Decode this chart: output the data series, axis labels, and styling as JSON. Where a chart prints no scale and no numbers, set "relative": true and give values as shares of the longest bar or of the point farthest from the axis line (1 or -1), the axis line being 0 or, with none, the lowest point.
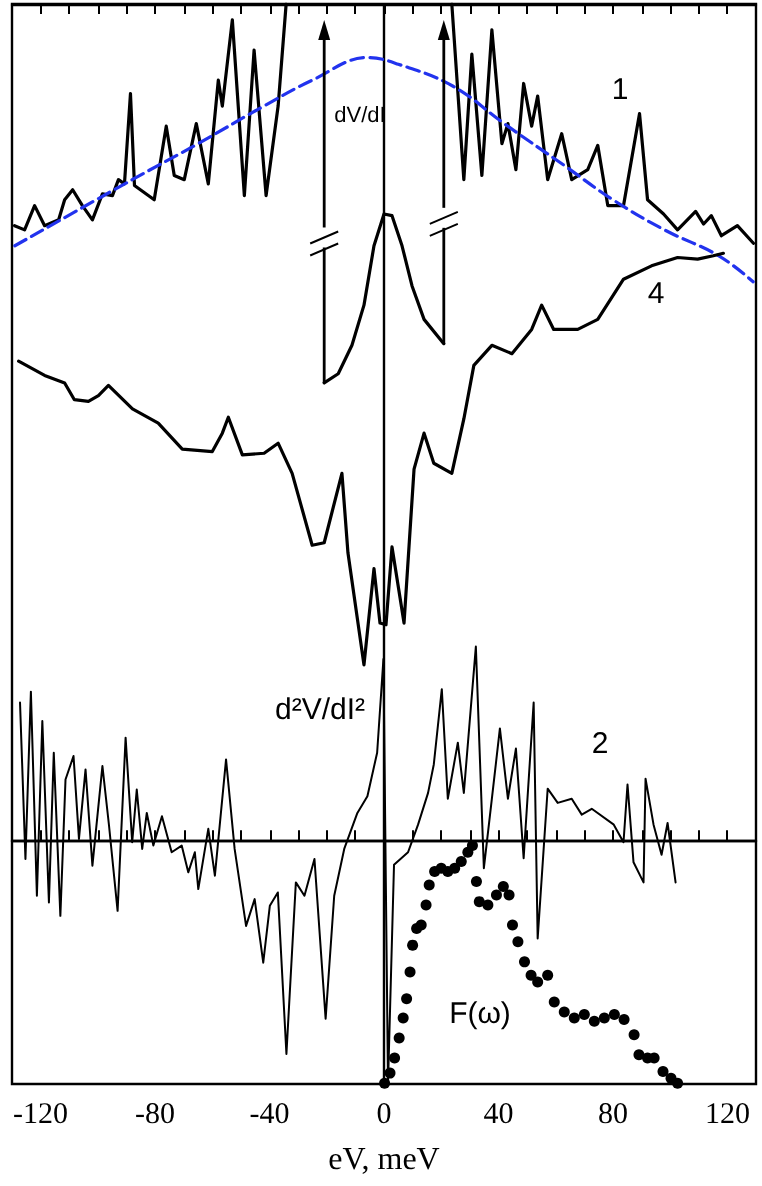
{
  "chart_data": {
    "type": "line",
    "relative": true,
    "xlabel": "eV, meV",
    "xlim": [
      -130,
      130
    ],
    "xticks": [
      {
        "value": -120,
        "label": "-120"
      },
      {
        "value": -110,
        "label": null
      },
      {
        "value": -100,
        "label": null
      },
      {
        "value": -90,
        "label": null
      },
      {
        "value": -80,
        "label": "-80"
      },
      {
        "value": -70,
        "label": null
      },
      {
        "value": -60,
        "label": null
      },
      {
        "value": -50,
        "label": null
      },
      {
        "value": -40,
        "label": "-40"
      },
      {
        "value": -30,
        "label": null
      },
      {
        "value": -20,
        "label": null
      },
      {
        "value": -10,
        "label": null
      },
      {
        "value": 0,
        "label": "0"
      },
      {
        "value": 10,
        "label": null
      },
      {
        "value": 20,
        "label": null
      },
      {
        "value": 30,
        "label": null
      },
      {
        "value": 40,
        "label": "40"
      },
      {
        "value": 50,
        "label": null
      },
      {
        "value": 60,
        "label": null
      },
      {
        "value": 70,
        "label": null
      },
      {
        "value": 80,
        "label": "80"
      },
      {
        "value": 90,
        "label": null
      },
      {
        "value": 100,
        "label": null
      },
      {
        "value": 110,
        "label": null
      },
      {
        "value": 120,
        "label": "120"
      }
    ],
    "grid": false,
    "marker": "none",
    "line_style": "solid",
    "series": [
      {
        "name": "1",
        "color": "#000000",
        "x": [
          -129.1,
          -125.6,
          -122.1,
          -118.6,
          -113.7,
          -111.6,
          -108.8,
          -105.4,
          -101.9,
          -98.4,
          -94.9,
          -92.8,
          -90.7,
          -88.6,
          -87.2,
          -80.3,
          -76.1,
          -73.3,
          -69.8,
          -65.6,
          -61.4,
          -57.9,
          -56.5,
          -53.0,
          -48.8,
          -45.4,
          -41.2,
          -37.0,
          -34.2,
          -27.0,
          -20.9,
          -16.0,
          -11.2,
          -7.0,
          -3.5,
          0,
          2.8,
          6.3,
          9.8,
          14.0,
          20.9,
          22.0,
          23.7,
          27.9,
          30.7,
          34.2,
          37.7,
          41.2,
          43.3,
          46.1,
          48.8,
          51.6,
          53.7,
          57.2,
          62.1,
          65.6,
          71.2,
          74.7,
          78.2,
          83.7,
          89.3,
          92.1,
          97.7,
          102.6,
          108.9,
          111.7,
          114.4,
          117.9,
          123.5,
          129.1
        ],
        "values": [
          0.735,
          0.73,
          0.759,
          0.735,
          0.742,
          0.766,
          0.778,
          0.759,
          0.742,
          0.773,
          0.771,
          0.79,
          0.785,
          0.893,
          0.783,
          0.766,
          0.854,
          0.795,
          0.79,
          0.857,
          0.785,
          0.909,
          0.878,
          0.981,
          0.771,
          0.945,
          0.771,
          0.878,
          1.0,
          null,
          0.547,
          0.558,
          0.592,
          0.64,
          0.711,
          0.749,
          0.747,
          0.711,
          0.663,
          0.623,
          0.594,
          null,
          1.0,
          0.79,
          0.94,
          0.795,
          0.969,
          0.833,
          0.857,
          0.802,
          0.905,
          0.854,
          0.89,
          0.79,
          0.845,
          0.79,
          0.802,
          0.831,
          0.759,
          0.759,
          0.869,
          0.766,
          0.749,
          0.73,
          0.752,
          0.737,
          0.747,
          0.723,
          0.735,
          0.714
        ]
      },
      {
        "color": "#2233ee",
        "line_style": "dashed",
        "x": [
          -129,
          -88,
          -65,
          -42,
          -25,
          -5.6,
          5,
          24,
          42,
          63,
          80,
          98,
          117,
          129
        ],
        "values": [
          0.711,
          0.79,
          0.833,
          0.878,
          0.909,
          0.936,
          0.928,
          0.902,
          0.857,
          0.807,
          0.766,
          0.73,
          0.699,
          0.668
        ]
      },
      {
        "name": "4",
        "color": "#000000",
        "x": [
          -127.7,
          -118.6,
          -111.6,
          -108.2,
          -103.3,
          -99.8,
          -96.3,
          -87.9,
          -78.9,
          -70.5,
          -60.0,
          -56.5,
          -54.4,
          -49.5,
          -41.9,
          -37.0,
          -32.1,
          -25.1,
          -20.9,
          -14.7,
          -12.6,
          -7.0,
          -3.5,
          -1.4,
          0.7,
          2.8,
          7.0,
          10.5,
          14.0,
          17.4,
          23.7,
          27.9,
          31.4,
          37.7,
          44.7,
          51.6,
          55.1,
          59.3,
          67.7,
          74.7,
          83.7,
          93.5,
          102.6,
          109.6,
          115.1,
          118.6
        ],
        "values": [
          0.573,
          0.556,
          0.547,
          0.527,
          0.525,
          0.532,
          0.544,
          0.516,
          0.499,
          0.468,
          0.465,
          0.487,
          0.506,
          0.461,
          0.463,
          0.475,
          0.439,
          0.353,
          0.356,
          0.439,
          0.344,
          0.21,
          0.325,
          0.26,
          0.258,
          0.351,
          0.26,
          0.444,
          0.487,
          0.451,
          0.439,
          0.504,
          0.568,
          0.592,
          0.582,
          0.611,
          0.64,
          0.611,
          0.611,
          0.623,
          0.671,
          0.687,
          0.697,
          0.695,
          0.699,
          0.702
        ]
      },
      {
        "name": "2",
        "color": "#000000",
        "x": [
          -127.2,
          -125.3,
          -123.4,
          -121.3,
          -119.4,
          -117.1,
          -115.4,
          -113.1,
          -111.3,
          -108.5,
          -106.6,
          -104.3,
          -101.9,
          -98.4,
          -96.1,
          -93.1,
          -90.3,
          -88.0,
          -86.4,
          -84.5,
          -82.9,
          -80.6,
          -77.6,
          -74.2,
          -70.7,
          -68.4,
          -66.1,
          -64.9,
          -61.4,
          -59.1,
          -55.2,
          -52.2,
          -48.2,
          -45.2,
          -42.2,
          -39.9,
          -37.1,
          -34.1,
          -30.8,
          -27.8,
          -24.3,
          -20.4,
          -17.4,
          -13.9,
          -9.3,
          -5.8,
          -2.4,
          -0.2,
          1.4,
          3.5,
          8.4,
          11.9,
          15.4,
          17.4,
          20.2,
          22.3,
          25.8,
          27.9,
          32.1,
          34.9,
          37.7,
          40.5,
          43.3,
          46.1,
          48.8,
          52.3,
          53.7,
          57.2,
          60.7,
          65.6,
          69.1,
          72.6,
          80.3,
          83.7,
          85.1,
          87.2,
          90.7,
          91.4,
          94.2,
          97.0,
          99.1,
          101.9
        ],
        "values": [
          0.165,
          -0.022,
          0.178,
          -0.066,
          0.143,
          -0.074,
          0.105,
          -0.09,
          0.073,
          0.101,
          0.002,
          0.085,
          -0.03,
          0.089,
          0.018,
          -0.084,
          0.123,
          -0.002,
          0.061,
          -0.01,
          0.033,
          -0.006,
          0.029,
          -0.014,
          -0.006,
          -0.038,
          -0.014,
          -0.058,
          0.014,
          -0.042,
          0.097,
          -0.01,
          -0.102,
          -0.07,
          -0.146,
          -0.078,
          -0.062,
          -0.255,
          -0.05,
          -0.066,
          -0.022,
          -0.213,
          -0.066,
          -0.01,
          0.033,
          0.053,
          0.105,
          0.217,
          -0.291,
          -0.029,
          -0.014,
          0.019,
          0.057,
          0.091,
          0.181,
          0.05,
          0.117,
          0.057,
          0.232,
          -0.033,
          0.05,
          0.134,
          0.05,
          0.11,
          -0.021,
          0.165,
          -0.117,
          0.062,
          0.045,
          0.05,
          0.031,
          0.038,
          0.019,
          -0.002,
          0.067,
          -0.026,
          -0.05,
          0.074,
          0.019,
          -0.017,
          0.021,
          -0.05
        ]
      },
      {
        "name": "F(ω)",
        "type": "scatter",
        "marker": "circle",
        "color": "#000000",
        "x": [
          0.2,
          2.1,
          3.7,
          5.3,
          6.7,
          7.9,
          9.1,
          10.0,
          11.4,
          13.0,
          14.7,
          15.8,
          17.7,
          20.0,
          22.3,
          24.7,
          27.0,
          29.3,
          30.9,
          32.3,
          33.3,
          36.3,
          39.3,
          41.7,
          43.7,
          44.9,
          46.8,
          49.1,
          51.4,
          53.7,
          57.2,
          59.5,
          63.0,
          66.5,
          70.0,
          73.5,
          77.0,
          80.5,
          83.9,
          87.4,
          89.1,
          92.1,
          94.4,
          97.5,
          100.3,
          102.6
        ],
        "values": [
          -0.29,
          -0.278,
          -0.26,
          -0.236,
          -0.212,
          -0.189,
          -0.157,
          -0.125,
          -0.105,
          -0.101,
          -0.077,
          -0.053,
          -0.037,
          -0.033,
          -0.037,
          -0.033,
          -0.025,
          -0.014,
          -0.006,
          -0.049,
          -0.073,
          -0.077,
          -0.065,
          -0.055,
          -0.065,
          -0.101,
          -0.121,
          -0.145,
          -0.161,
          -0.169,
          -0.161,
          -0.193,
          -0.205,
          -0.212,
          -0.208,
          -0.216,
          -0.212,
          -0.208,
          -0.214,
          -0.232,
          -0.256,
          -0.26,
          -0.26,
          -0.276,
          -0.284,
          -0.29
        ]
      }
    ],
    "ref_lines": [
      {
        "axis": "x",
        "value": 0
      }
    ],
    "annotations": [
      "dV/dI",
      "d²V/dI²"
    ]
  }
}
